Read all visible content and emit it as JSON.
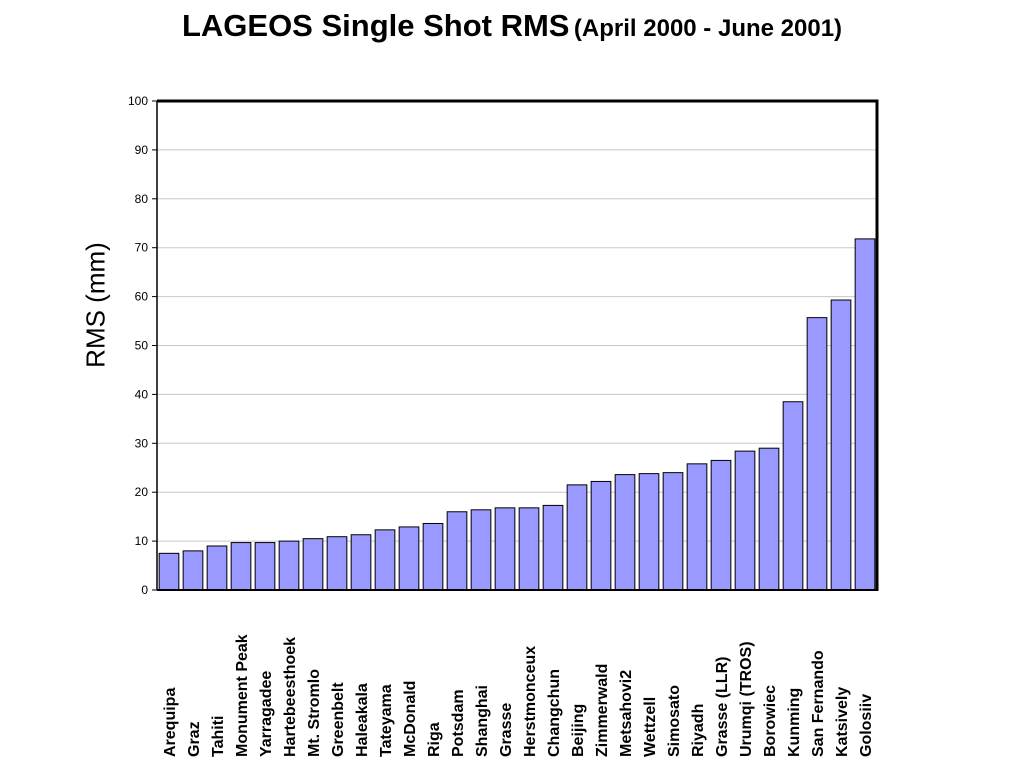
{
  "title": {
    "main": "LAGEOS Single Shot RMS",
    "sub": "(April 2000 - June 2001)"
  },
  "chart_data": {
    "type": "bar",
    "title": "LAGEOS Single Shot RMS (April 2000 - June 2001)",
    "ylabel": "RMS (mm)",
    "xlabel": "",
    "ylim": [
      0,
      100
    ],
    "yticks": [
      0,
      10,
      20,
      30,
      40,
      50,
      60,
      70,
      80,
      90,
      100
    ],
    "grid": true,
    "bar_color": "#9999ff",
    "categories": [
      "Arequipa",
      "Graz",
      "Tahiti",
      "Monument Peak",
      "Yarragadee",
      "Hartebeesthoek",
      "Mt. Stromlo",
      "Greenbelt",
      "Haleakala",
      "Tateyama",
      "McDonald",
      "Riga",
      "Potsdam",
      "Shanghai",
      "Grasse",
      "Herstmonceux",
      "Changchun",
      "Beijing",
      "Zimmerwald",
      "Metsahovi2",
      "Wettzell",
      "Simosato",
      "Riyadh",
      "Grasse (LLR)",
      "Urumqi (TROS)",
      "Borowiec",
      "Kunming",
      "San Fernando",
      "Katsively",
      "Golosiiv"
    ],
    "values": [
      7.5,
      8.0,
      9.0,
      9.7,
      9.7,
      10.0,
      10.5,
      10.9,
      11.3,
      12.3,
      12.9,
      13.6,
      16.0,
      16.4,
      16.8,
      16.8,
      17.3,
      21.5,
      22.2,
      23.6,
      23.8,
      24.0,
      25.8,
      26.5,
      28.4,
      29.0,
      38.5,
      55.7,
      59.3,
      71.8
    ]
  }
}
